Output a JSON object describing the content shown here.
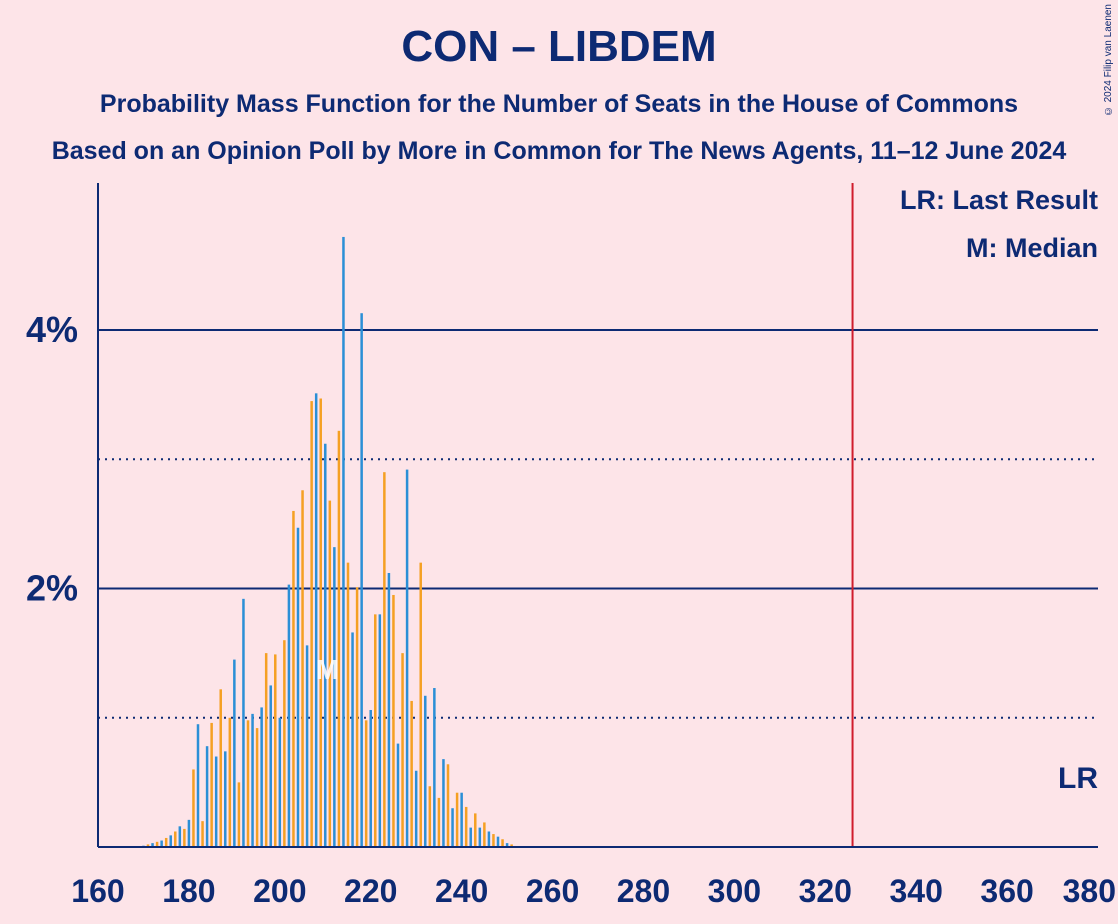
{
  "header": {
    "title": "CON – LIBDEM",
    "subtitle": "Probability Mass Function for the Number of Seats in the House of Commons",
    "source": "Based on an Opinion Poll by More in Common for The News Agents, 11–12 June 2024",
    "copyright": "© 2024 Filip van Laenen"
  },
  "legend": {
    "last_result": "LR: Last Result",
    "median": "M: Median",
    "lr_marker": "LR",
    "median_marker": "M"
  },
  "colors": {
    "background": "#fde4e8",
    "text": "#0d2a73",
    "bar_blue": "#2b8fd6",
    "bar_orange": "#f5a023",
    "last_result_line": "#d01c2c"
  },
  "chart_data": {
    "type": "bar",
    "xlim": [
      160,
      380
    ],
    "ylim": [
      0,
      5
    ],
    "x_ticks": [
      160,
      180,
      200,
      220,
      240,
      260,
      280,
      300,
      320,
      340,
      360,
      380
    ],
    "x_tick_labels": [
      "160",
      "180",
      "200",
      "220",
      "240",
      "260",
      "280",
      "300",
      "320",
      "340",
      "360",
      "380"
    ],
    "y_major_ticks": [
      2,
      4
    ],
    "y_major_labels": [
      "2%",
      "4%"
    ],
    "y_minor_ticks": [
      1,
      3
    ],
    "last_result": 326,
    "median": 210,
    "unit": "%",
    "x": [
      170,
      171,
      172,
      173,
      174,
      175,
      176,
      177,
      178,
      179,
      180,
      181,
      182,
      183,
      184,
      185,
      186,
      187,
      188,
      189,
      190,
      191,
      192,
      193,
      194,
      195,
      196,
      197,
      198,
      199,
      200,
      201,
      202,
      203,
      204,
      205,
      206,
      207,
      208,
      209,
      210,
      211,
      212,
      213,
      214,
      215,
      216,
      217,
      218,
      219,
      220,
      221,
      222,
      223,
      224,
      225,
      226,
      227,
      228,
      229,
      230,
      231,
      232,
      233,
      234,
      235,
      236,
      237,
      238,
      239,
      240,
      241,
      242,
      243,
      244,
      245,
      246,
      247,
      248,
      249,
      250,
      251
    ],
    "values": [
      0.01,
      0.02,
      0.03,
      0.04,
      0.05,
      0.07,
      0.09,
      0.12,
      0.16,
      0.14,
      0.21,
      0.6,
      0.95,
      0.2,
      0.78,
      0.96,
      0.7,
      1.22,
      0.74,
      1.0,
      1.45,
      0.5,
      1.92,
      0.98,
      1.03,
      0.92,
      1.08,
      1.5,
      1.25,
      1.49,
      1.0,
      1.6,
      2.03,
      2.6,
      2.47,
      2.76,
      1.56,
      3.45,
      3.51,
      3.47,
      3.12,
      2.68,
      2.32,
      3.22,
      4.72,
      2.2,
      1.66,
      2.01,
      4.13,
      0.98,
      1.06,
      1.8,
      1.8,
      2.9,
      2.12,
      1.95,
      0.8,
      1.5,
      2.92,
      1.13,
      0.59,
      2.2,
      1.17,
      0.47,
      1.23,
      0.38,
      0.68,
      0.64,
      0.3,
      0.42,
      0.42,
      0.31,
      0.15,
      0.26,
      0.15,
      0.19,
      0.12,
      0.1,
      0.08,
      0.06,
      0.03,
      0.02
    ]
  }
}
